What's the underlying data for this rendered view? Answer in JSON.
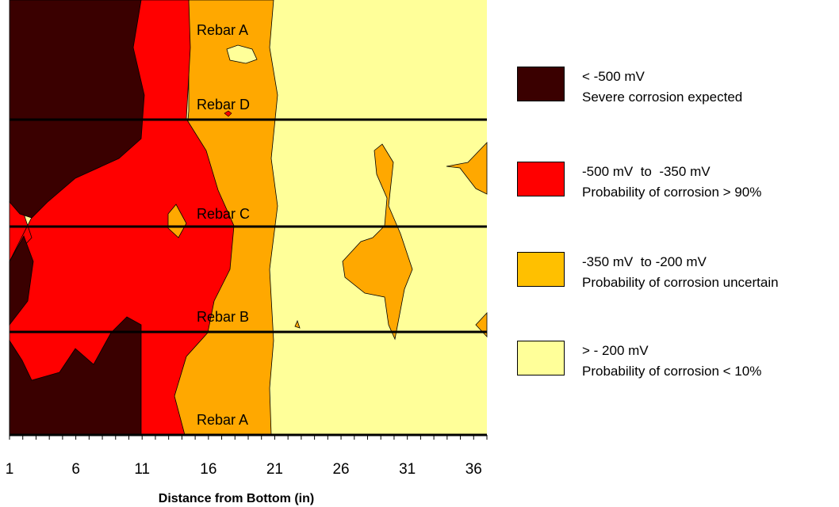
{
  "chart_data": {
    "type": "heatmap",
    "title": "",
    "xlabel": "Distance from Bottom (in)",
    "ylabel": "",
    "x_ticks": [
      1,
      6,
      11,
      16,
      21,
      26,
      31,
      36
    ],
    "xlim": [
      1,
      37
    ],
    "rebar_lines": [
      {
        "label": "Rebar A",
        "level": "top",
        "line": false
      },
      {
        "label": "Rebar D",
        "level": 1,
        "line": true
      },
      {
        "label": "Rebar C",
        "level": 2,
        "line": true
      },
      {
        "label": "Rebar B",
        "level": 3,
        "line": true
      },
      {
        "label": "Rebar A",
        "level": 4,
        "line": true
      }
    ],
    "regions": [
      {
        "name": "severe",
        "color": "#3a0000"
      },
      {
        "name": "high",
        "color": "#ff0000"
      },
      {
        "name": "uncertain",
        "color": "#ffa800"
      },
      {
        "name": "low",
        "color": "#ffff99"
      }
    ]
  },
  "legend": [
    {
      "color": "#3a0000",
      "range": "< -500 mV",
      "description": "Severe corrosion expected"
    },
    {
      "color": "#ff0000",
      "range": "-500 mV  to  -350 mV",
      "description": "Probability of corrosion > 90%"
    },
    {
      "color": "#ffc000",
      "range": "-350 mV  to -200 mV",
      "description": "Probability of corrosion uncertain"
    },
    {
      "color": "#ffff99",
      "range": "> - 200 mV",
      "description": "Probability of corrosion < 10%"
    }
  ]
}
